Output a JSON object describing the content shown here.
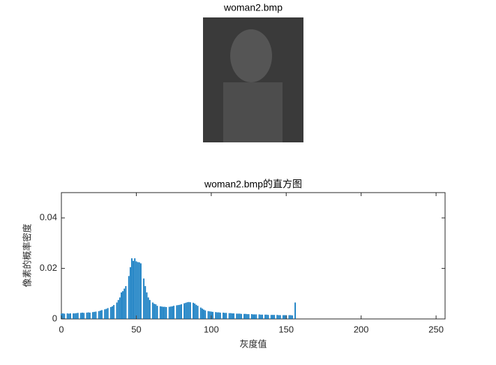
{
  "image_title": "woman2.bmp",
  "chart_data": {
    "type": "bar",
    "title": "woman2.bmp的直方图",
    "xlabel": "灰度值",
    "ylabel": "像素的概率密度",
    "color": "#0072bd",
    "x": [
      0,
      1,
      2,
      3,
      4,
      5,
      6,
      7,
      8,
      9,
      10,
      11,
      12,
      13,
      14,
      15,
      16,
      17,
      18,
      19,
      20,
      21,
      22,
      23,
      24,
      25,
      26,
      27,
      28,
      29,
      30,
      31,
      32,
      33,
      34,
      35,
      36,
      37,
      38,
      39,
      40,
      41,
      42,
      43,
      44,
      45,
      46,
      47,
      48,
      49,
      50,
      51,
      52,
      53,
      54,
      55,
      56,
      57,
      58,
      59,
      60,
      61,
      62,
      63,
      64,
      65,
      66,
      67,
      68,
      69,
      70,
      71,
      72,
      73,
      74,
      75,
      76,
      77,
      78,
      79,
      80,
      81,
      82,
      83,
      84,
      85,
      86,
      87,
      88,
      89,
      90,
      91,
      92,
      93,
      94,
      95,
      96,
      97,
      98,
      99,
      100,
      101,
      102,
      103,
      104,
      105,
      106,
      107,
      108,
      109,
      110,
      111,
      112,
      113,
      114,
      115,
      116,
      117,
      118,
      119,
      120,
      121,
      122,
      123,
      124,
      125,
      126,
      127,
      128,
      129,
      130,
      131,
      132,
      133,
      134,
      135,
      136,
      137,
      138,
      139,
      140,
      141,
      142,
      143,
      144,
      145,
      146,
      147,
      148,
      149,
      150,
      151,
      152,
      153,
      154,
      155,
      156
    ],
    "values": [
      0.0021,
      0.0022,
      0.0021,
      0,
      0.0022,
      0.0021,
      0.0022,
      0,
      0.0022,
      0.0022,
      0.0023,
      0.0024,
      0,
      0.0024,
      0.0025,
      0.0024,
      0,
      0.0025,
      0.0026,
      0.0025,
      0,
      0.0027,
      0.0028,
      0.0029,
      0,
      0.0031,
      0.0033,
      0.0035,
      0,
      0.0038,
      0.004,
      0.0043,
      0,
      0.0047,
      0.005,
      0.0055,
      0,
      0.0065,
      0.0075,
      0.0085,
      0.0105,
      0.011,
      0.012,
      0.013,
      0,
      0.017,
      0.0205,
      0.024,
      0.023,
      0.024,
      0.0228,
      0.0225,
      0.0224,
      0.022,
      0,
      0.016,
      0.013,
      0.0105,
      0.0085,
      0.0075,
      0,
      0.0065,
      0.006,
      0.0058,
      0.0052,
      0,
      0.005,
      0.0049,
      0.0048,
      0.0048,
      0.0047,
      0,
      0.0048,
      0.0049,
      0.005,
      0.0052,
      0,
      0.0054,
      0.0055,
      0.0056,
      0.0058,
      0,
      0.0062,
      0.0064,
      0.0066,
      0.0067,
      0.0066,
      0,
      0.0064,
      0.0061,
      0.0056,
      0.0052,
      0,
      0.0045,
      0.0041,
      0.0037,
      0.0034,
      0,
      0.0031,
      0.003,
      0.0029,
      0.0028,
      0,
      0.0027,
      0.0026,
      0.0026,
      0.0025,
      0,
      0.0025,
      0.0024,
      0.0024,
      0,
      0.0023,
      0.0023,
      0.0022,
      0.0022,
      0,
      0.0021,
      0.0021,
      0.0021,
      0.002,
      0,
      0.002,
      0.002,
      0.0019,
      0.0019,
      0,
      0.0019,
      0.0018,
      0.0018,
      0.0018,
      0,
      0.0018,
      0.0017,
      0.0017,
      0,
      0.0017,
      0.0017,
      0.0016,
      0,
      0.0016,
      0.0016,
      0.0016,
      0,
      0.0016,
      0.0015,
      0.0015,
      0,
      0.0015,
      0.0015,
      0.0015,
      0,
      0.0015,
      0.0015,
      0.0014,
      0,
      0.0065
    ],
    "xlim": [
      0,
      256
    ],
    "xticks": [
      0,
      50,
      100,
      150,
      200,
      250
    ],
    "ylim": [
      0,
      0.05
    ],
    "yticks": [
      0,
      0.02,
      0.04
    ]
  }
}
